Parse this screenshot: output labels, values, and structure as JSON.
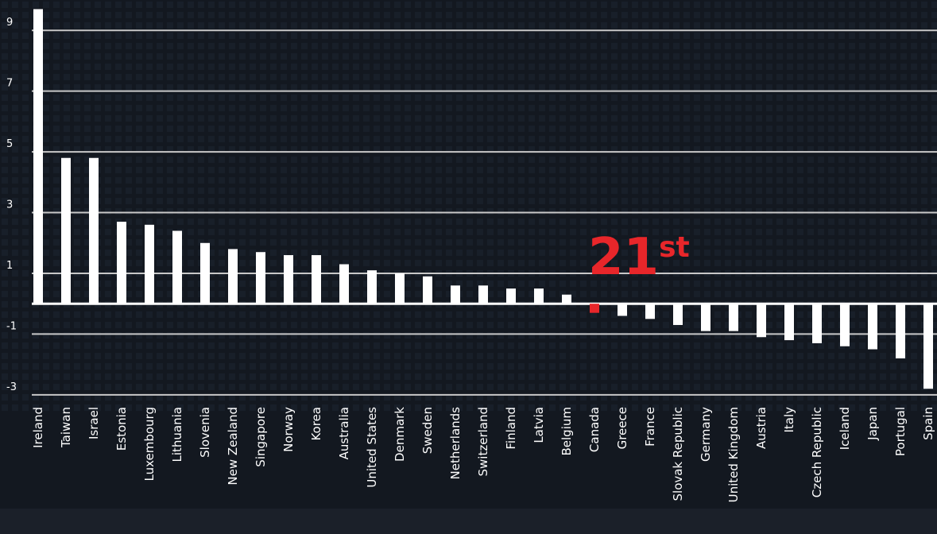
{
  "chart_data": {
    "type": "bar",
    "categories": [
      "Ireland",
      "Taiwan",
      "Israel",
      "Estonia",
      "Luxembourg",
      "Lithuania",
      "Slovenia",
      "New Zealand",
      "Singapore",
      "Norway",
      "Korea",
      "Australia",
      "United States",
      "Denmark",
      "Sweden",
      "Netherlands",
      "Switzerland",
      "Finland",
      "Latvia",
      "Belgium",
      "Canada",
      "Greece",
      "France",
      "Slovak Republic",
      "Germany",
      "United Kingdom",
      "Austria",
      "Italy",
      "Czech Republic",
      "Iceland",
      "Japan",
      "Portugal",
      "Spain"
    ],
    "values": [
      9.7,
      4.8,
      4.8,
      2.7,
      2.6,
      2.4,
      2.0,
      1.8,
      1.7,
      1.6,
      1.6,
      1.3,
      1.1,
      1.0,
      0.9,
      0.6,
      0.6,
      0.5,
      0.5,
      0.3,
      -0.3,
      -0.4,
      -0.5,
      -0.7,
      -0.9,
      -0.9,
      -1.1,
      -1.2,
      -1.3,
      -1.4,
      -1.5,
      -1.8,
      -2.8
    ],
    "color": "#ffffff",
    "highlight_index": 20,
    "highlight_color": "#e8262a",
    "annotation": {
      "text": "21",
      "superscript": "st"
    },
    "ylim": [
      -3.1,
      10
    ],
    "yticks": [
      -3,
      -1,
      1,
      3,
      5,
      7,
      9
    ],
    "grid": true
  }
}
